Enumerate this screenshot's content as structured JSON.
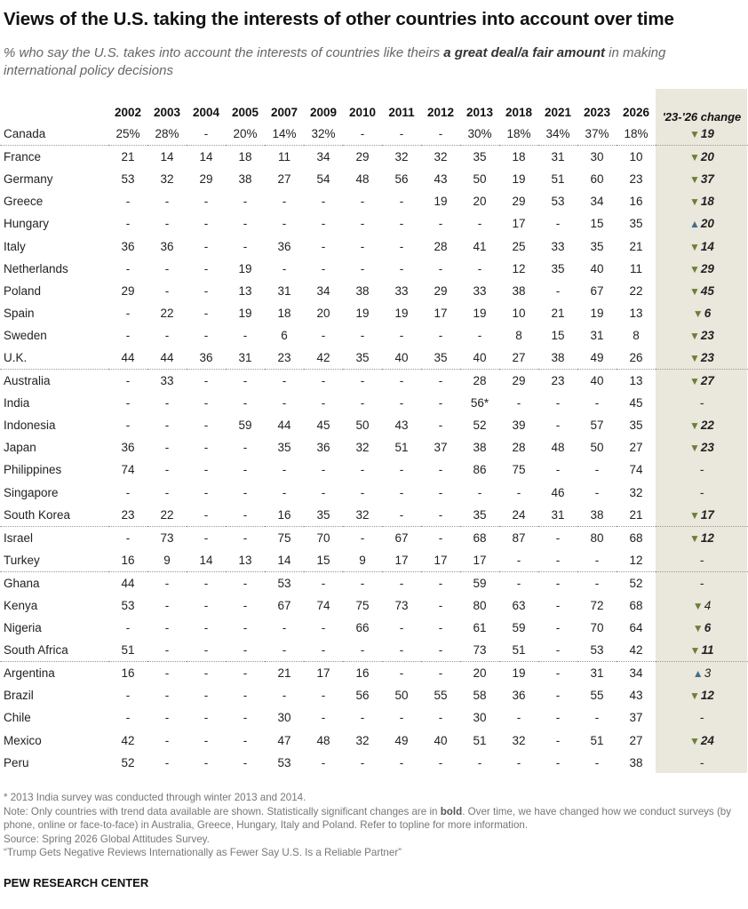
{
  "title": "Views of the U.S. taking the interests of other countries into account over time",
  "subtitle": {
    "before": "% who say the U.S. takes into account the interests of countries like theirs ",
    "emphasis": "a great deal/a fair amount",
    "after": " in making international policy decisions"
  },
  "years": [
    "2002",
    "2003",
    "2004",
    "2005",
    "2007",
    "2009",
    "2010",
    "2011",
    "2012",
    "2013",
    "2018",
    "2021",
    "2023",
    "2026"
  ],
  "change_header": "'23-'26 change",
  "colors": {
    "change_bg": "#eae7dc",
    "down_arrow": "#6b7f3a",
    "up_arrow": "#3f6e8f"
  },
  "rows": [
    {
      "country": "Canada",
      "values": [
        "25%",
        "28%",
        "-",
        "20%",
        "14%",
        "32%",
        "-",
        "-",
        "-",
        "30%",
        "18%",
        "34%",
        "37%",
        "18%"
      ],
      "change": {
        "dir": "down",
        "value": "19",
        "bold": true
      },
      "sep": false
    },
    {
      "country": "France",
      "values": [
        "21",
        "14",
        "14",
        "18",
        "11",
        "34",
        "29",
        "32",
        "32",
        "35",
        "18",
        "31",
        "30",
        "10"
      ],
      "change": {
        "dir": "down",
        "value": "20",
        "bold": true
      },
      "sep": true
    },
    {
      "country": "Germany",
      "values": [
        "53",
        "32",
        "29",
        "38",
        "27",
        "54",
        "48",
        "56",
        "43",
        "50",
        "19",
        "51",
        "60",
        "23"
      ],
      "change": {
        "dir": "down",
        "value": "37",
        "bold": true
      },
      "sep": false
    },
    {
      "country": "Greece",
      "values": [
        "-",
        "-",
        "-",
        "-",
        "-",
        "-",
        "-",
        "-",
        "19",
        "20",
        "29",
        "53",
        "34",
        "16"
      ],
      "change": {
        "dir": "down",
        "value": "18",
        "bold": true
      },
      "sep": false
    },
    {
      "country": "Hungary",
      "values": [
        "-",
        "-",
        "-",
        "-",
        "-",
        "-",
        "-",
        "-",
        "-",
        "-",
        "17",
        "-",
        "15",
        "35"
      ],
      "change": {
        "dir": "up",
        "value": "20",
        "bold": true
      },
      "sep": false
    },
    {
      "country": "Italy",
      "values": [
        "36",
        "36",
        "-",
        "-",
        "36",
        "-",
        "-",
        "-",
        "28",
        "41",
        "25",
        "33",
        "35",
        "21"
      ],
      "change": {
        "dir": "down",
        "value": "14",
        "bold": true
      },
      "sep": false
    },
    {
      "country": "Netherlands",
      "values": [
        "-",
        "-",
        "-",
        "19",
        "-",
        "-",
        "-",
        "-",
        "-",
        "-",
        "12",
        "35",
        "40",
        "11"
      ],
      "change": {
        "dir": "down",
        "value": "29",
        "bold": true
      },
      "sep": false
    },
    {
      "country": "Poland",
      "values": [
        "29",
        "-",
        "-",
        "13",
        "31",
        "34",
        "38",
        "33",
        "29",
        "33",
        "38",
        "-",
        "67",
        "22"
      ],
      "change": {
        "dir": "down",
        "value": "45",
        "bold": true
      },
      "sep": false
    },
    {
      "country": "Spain",
      "values": [
        "-",
        "22",
        "-",
        "19",
        "18",
        "20",
        "19",
        "19",
        "17",
        "19",
        "10",
        "21",
        "19",
        "13"
      ],
      "change": {
        "dir": "down",
        "value": "6",
        "bold": true
      },
      "sep": false
    },
    {
      "country": "Sweden",
      "values": [
        "-",
        "-",
        "-",
        "-",
        "6",
        "-",
        "-",
        "-",
        "-",
        "-",
        "8",
        "15",
        "31",
        "8"
      ],
      "change": {
        "dir": "down",
        "value": "23",
        "bold": true
      },
      "sep": false
    },
    {
      "country": "U.K.",
      "values": [
        "44",
        "44",
        "36",
        "31",
        "23",
        "42",
        "35",
        "40",
        "35",
        "40",
        "27",
        "38",
        "49",
        "26"
      ],
      "change": {
        "dir": "down",
        "value": "23",
        "bold": true
      },
      "sep": false
    },
    {
      "country": "Australia",
      "values": [
        "-",
        "33",
        "-",
        "-",
        "-",
        "-",
        "-",
        "-",
        "-",
        "28",
        "29",
        "23",
        "40",
        "13"
      ],
      "change": {
        "dir": "down",
        "value": "27",
        "bold": true
      },
      "sep": true
    },
    {
      "country": "India",
      "values": [
        "-",
        "-",
        "-",
        "-",
        "-",
        "-",
        "-",
        "-",
        "-",
        "56*",
        "-",
        "-",
        "-",
        "45"
      ],
      "change": {
        "dir": "none",
        "value": "-",
        "bold": false
      },
      "sep": false
    },
    {
      "country": "Indonesia",
      "values": [
        "-",
        "-",
        "-",
        "59",
        "44",
        "45",
        "50",
        "43",
        "-",
        "52",
        "39",
        "-",
        "57",
        "35"
      ],
      "change": {
        "dir": "down",
        "value": "22",
        "bold": true
      },
      "sep": false
    },
    {
      "country": "Japan",
      "values": [
        "36",
        "-",
        "-",
        "-",
        "35",
        "36",
        "32",
        "51",
        "37",
        "38",
        "28",
        "48",
        "50",
        "27"
      ],
      "change": {
        "dir": "down",
        "value": "23",
        "bold": true
      },
      "sep": false
    },
    {
      "country": "Philippines",
      "values": [
        "74",
        "-",
        "-",
        "-",
        "-",
        "-",
        "-",
        "-",
        "-",
        "86",
        "75",
        "-",
        "-",
        "74"
      ],
      "change": {
        "dir": "none",
        "value": "-",
        "bold": false
      },
      "sep": false
    },
    {
      "country": "Singapore",
      "values": [
        "-",
        "-",
        "-",
        "-",
        "-",
        "-",
        "-",
        "-",
        "-",
        "-",
        "-",
        "46",
        "-",
        "32"
      ],
      "change": {
        "dir": "none",
        "value": "-",
        "bold": false
      },
      "sep": false
    },
    {
      "country": "South Korea",
      "values": [
        "23",
        "22",
        "-",
        "-",
        "16",
        "35",
        "32",
        "-",
        "-",
        "35",
        "24",
        "31",
        "38",
        "21"
      ],
      "change": {
        "dir": "down",
        "value": "17",
        "bold": true
      },
      "sep": false
    },
    {
      "country": "Israel",
      "values": [
        "-",
        "73",
        "-",
        "-",
        "75",
        "70",
        "-",
        "67",
        "-",
        "68",
        "87",
        "-",
        "80",
        "68"
      ],
      "change": {
        "dir": "down",
        "value": "12",
        "bold": true
      },
      "sep": true
    },
    {
      "country": "Turkey",
      "values": [
        "16",
        "9",
        "14",
        "13",
        "14",
        "15",
        "9",
        "17",
        "17",
        "17",
        "-",
        "-",
        "-",
        "12"
      ],
      "change": {
        "dir": "none",
        "value": "-",
        "bold": false
      },
      "sep": false
    },
    {
      "country": "Ghana",
      "values": [
        "44",
        "-",
        "-",
        "-",
        "53",
        "-",
        "-",
        "-",
        "-",
        "59",
        "-",
        "-",
        "-",
        "52"
      ],
      "change": {
        "dir": "none",
        "value": "-",
        "bold": false
      },
      "sep": true
    },
    {
      "country": "Kenya",
      "values": [
        "53",
        "-",
        "-",
        "-",
        "67",
        "74",
        "75",
        "73",
        "-",
        "80",
        "63",
        "-",
        "72",
        "68"
      ],
      "change": {
        "dir": "down",
        "value": "4",
        "bold": false
      },
      "sep": false
    },
    {
      "country": "Nigeria",
      "values": [
        "-",
        "-",
        "-",
        "-",
        "-",
        "-",
        "66",
        "-",
        "-",
        "61",
        "59",
        "-",
        "70",
        "64"
      ],
      "change": {
        "dir": "down",
        "value": "6",
        "bold": true
      },
      "sep": false
    },
    {
      "country": "South Africa",
      "values": [
        "51",
        "-",
        "-",
        "-",
        "-",
        "-",
        "-",
        "-",
        "-",
        "73",
        "51",
        "-",
        "53",
        "42"
      ],
      "change": {
        "dir": "down",
        "value": "11",
        "bold": true
      },
      "sep": false
    },
    {
      "country": "Argentina",
      "values": [
        "16",
        "-",
        "-",
        "-",
        "21",
        "17",
        "16",
        "-",
        "-",
        "20",
        "19",
        "-",
        "31",
        "34"
      ],
      "change": {
        "dir": "up",
        "value": "3",
        "bold": false
      },
      "sep": true
    },
    {
      "country": "Brazil",
      "values": [
        "-",
        "-",
        "-",
        "-",
        "-",
        "-",
        "56",
        "50",
        "55",
        "58",
        "36",
        "-",
        "55",
        "43"
      ],
      "change": {
        "dir": "down",
        "value": "12",
        "bold": true
      },
      "sep": false
    },
    {
      "country": "Chile",
      "values": [
        "-",
        "-",
        "-",
        "-",
        "30",
        "-",
        "-",
        "-",
        "-",
        "30",
        "-",
        "-",
        "-",
        "37"
      ],
      "change": {
        "dir": "none",
        "value": "-",
        "bold": false
      },
      "sep": false
    },
    {
      "country": "Mexico",
      "values": [
        "42",
        "-",
        "-",
        "-",
        "47",
        "48",
        "32",
        "49",
        "40",
        "51",
        "32",
        "-",
        "51",
        "27"
      ],
      "change": {
        "dir": "down",
        "value": "24",
        "bold": true
      },
      "sep": false
    },
    {
      "country": "Peru",
      "values": [
        "52",
        "-",
        "-",
        "-",
        "53",
        "-",
        "-",
        "-",
        "-",
        "-",
        "-",
        "-",
        "-",
        "38"
      ],
      "change": {
        "dir": "none",
        "value": "-",
        "bold": false
      },
      "sep": false
    }
  ],
  "footnotes": {
    "asterisk": "* 2013 India survey was conducted through winter 2013 and 2014.",
    "note_before": "Note: Only countries with trend data available are shown. Statistically significant changes are in ",
    "note_bold": "bold",
    "note_after": ". Over time, we have changed how we conduct surveys (by phone, online or face-to-face) in Australia, Greece, Hungary, Italy and Poland. Refer to topline for more information.",
    "source": "Source: Spring 2026 Global Attitudes Survey.",
    "report": "“Trump Gets Negative Reviews Internationally as Fewer Say U.S. Is a Reliable Partner”"
  },
  "organization": "PEW RESEARCH CENTER"
}
